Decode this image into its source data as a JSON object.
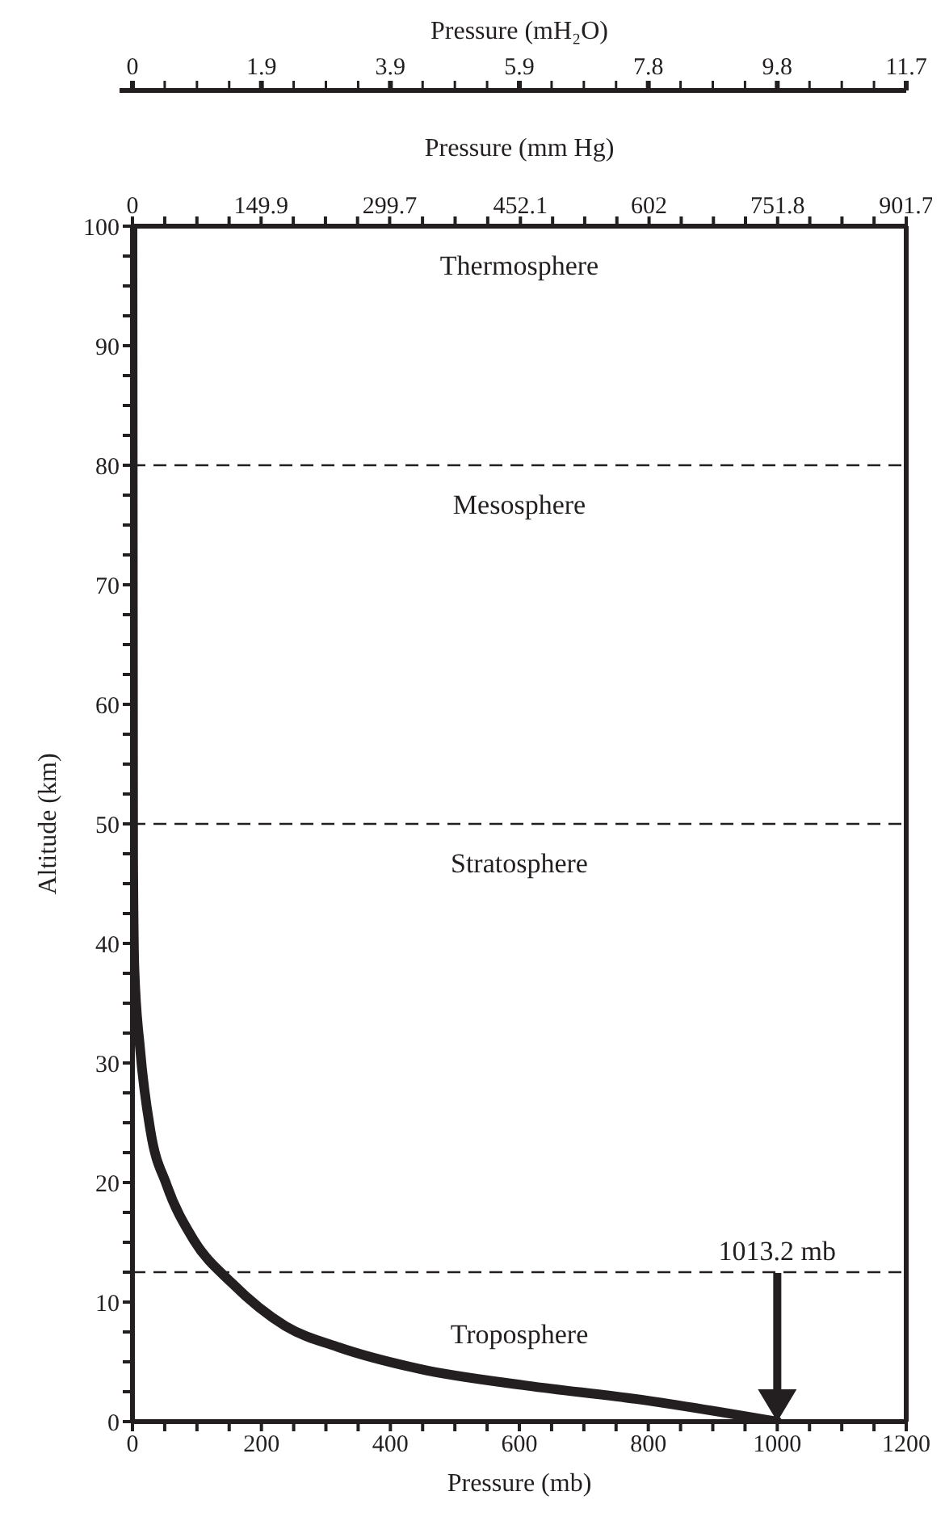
{
  "chart_data": {
    "type": "line",
    "xlabel": "Pressure (mb)",
    "ylabel": "Altitude (km)",
    "x2label": "Pressure (mm Hg)",
    "x": [
      0,
      1,
      3,
      12,
      28,
      53,
      95,
      154,
      237,
      321,
      446,
      613,
      780,
      1000
    ],
    "series": [
      {
        "color": "#231f20",
        "values": [
          100,
          47,
          37.9,
          31.1,
          24.3,
          19.8,
          15.2,
          11.6,
          8.0,
          6.2,
          4.4,
          3.0,
          1.9,
          0
        ]
      }
    ],
    "xlim": [
      0,
      1200
    ],
    "ylim": [
      0,
      100
    ],
    "xticks": [
      0,
      {
        "value": 50,
        "label": null
      },
      {
        "value": 100,
        "label": null
      },
      {
        "value": 150,
        "label": null
      },
      200,
      {
        "value": 250,
        "label": null
      },
      {
        "value": 300,
        "label": null
      },
      {
        "value": 350,
        "label": null
      },
      400,
      {
        "value": 450,
        "label": null
      },
      {
        "value": 500,
        "label": null
      },
      {
        "value": 550,
        "label": null
      },
      600,
      {
        "value": 650,
        "label": null
      },
      {
        "value": 700,
        "label": null
      },
      {
        "value": 750,
        "label": null
      },
      800,
      {
        "value": 850,
        "label": null
      },
      {
        "value": 900,
        "label": null
      },
      {
        "value": 950,
        "label": null
      },
      1000,
      {
        "value": 1050,
        "label": null
      },
      {
        "value": 1100,
        "label": null
      },
      {
        "value": 1150,
        "label": null
      },
      1200
    ],
    "yticks": [
      0,
      {
        "value": 2.5,
        "label": null
      },
      {
        "value": 5,
        "label": null
      },
      {
        "value": 7.5,
        "label": null
      },
      10,
      {
        "value": 12.5,
        "label": null
      },
      {
        "value": 15,
        "label": null
      },
      {
        "value": 17.5,
        "label": null
      },
      20,
      {
        "value": 22.5,
        "label": null
      },
      {
        "value": 25,
        "label": null
      },
      {
        "value": 27.5,
        "label": null
      },
      30,
      {
        "value": 32.5,
        "label": null
      },
      {
        "value": 35,
        "label": null
      },
      {
        "value": 37.5,
        "label": null
      },
      40,
      {
        "value": 42.5,
        "label": null
      },
      {
        "value": 45,
        "label": null
      },
      {
        "value": 47.5,
        "label": null
      },
      50,
      {
        "value": 52.5,
        "label": null
      },
      {
        "value": 55,
        "label": null
      },
      {
        "value": 57.5,
        "label": null
      },
      60,
      {
        "value": 62.5,
        "label": null
      },
      {
        "value": 65,
        "label": null
      },
      {
        "value": 67.5,
        "label": null
      },
      70,
      {
        "value": 72.5,
        "label": null
      },
      {
        "value": 75,
        "label": null
      },
      {
        "value": 77.5,
        "label": null
      },
      80,
      {
        "value": 82.5,
        "label": null
      },
      {
        "value": 85,
        "label": null
      },
      {
        "value": 87.5,
        "label": null
      },
      90,
      {
        "value": 92.5,
        "label": null
      },
      {
        "value": 95,
        "label": null
      },
      {
        "value": 97.5,
        "label": null
      },
      100
    ],
    "x2lim": [
      0,
      901.7
    ],
    "x2ticks": [
      0,
      {
        "value": 37.6,
        "label": null
      },
      {
        "value": 75.1,
        "label": null
      },
      {
        "value": 112.6,
        "label": null
      },
      149.9,
      {
        "value": 187.4,
        "label": null
      },
      {
        "value": 224.9,
        "label": null
      },
      {
        "value": 262.3,
        "label": null
      },
      299.7,
      {
        "value": 338,
        "label": null
      },
      {
        "value": 376,
        "label": null
      },
      {
        "value": 414,
        "label": null
      },
      452.1,
      {
        "value": 489.6,
        "label": null
      },
      {
        "value": 527,
        "label": null
      },
      {
        "value": 564.5,
        "label": null
      },
      602,
      {
        "value": 639.5,
        "label": null
      },
      {
        "value": 677,
        "label": null
      },
      {
        "value": 714.4,
        "label": null
      },
      751.8,
      {
        "value": 789.3,
        "label": null
      },
      {
        "value": 826.8,
        "label": null
      },
      {
        "value": 864.2,
        "label": null
      },
      901.7
    ],
    "ref_lines": [
      {
        "axis": "y",
        "value": 80,
        "color": "#231f20",
        "line_style": "dashed"
      },
      {
        "axis": "y",
        "value": 50,
        "color": "#231f20",
        "line_style": "dashed"
      },
      {
        "axis": "y",
        "value": 12.5,
        "color": "#231f20",
        "line_style": "dashed"
      }
    ],
    "annotations": [
      "Pressure (mH₂O)",
      "0",
      "1.9",
      "3.9",
      "5.9",
      "7.8",
      "9.8",
      "11.7",
      "Thermosphere",
      "Mesosphere",
      "Stratosphere",
      "Troposphere",
      "1013.2 mb"
    ],
    "grid": false,
    "legend": false,
    "marker": "none",
    "line_style": "solid"
  }
}
